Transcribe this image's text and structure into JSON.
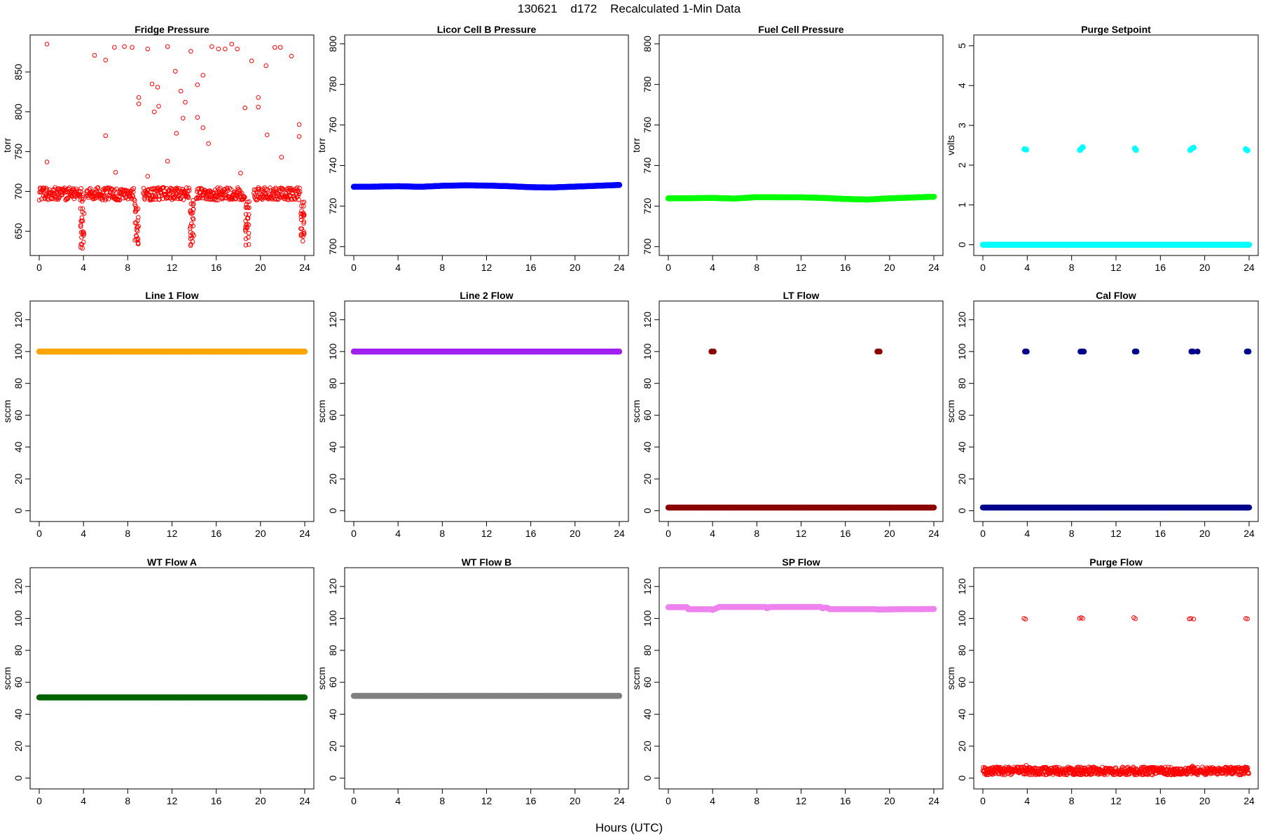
{
  "figure": {
    "title": "130621    d172    Recalculated 1-Min Data",
    "xlabel": "Hours (UTC)"
  },
  "chart_data": [
    {
      "type": "scatter",
      "title": "Fridge Pressure",
      "ylabel": "torr",
      "xlabel": "",
      "xlim": [
        0,
        24
      ],
      "ylim": [
        623,
        893
      ],
      "xticks": [
        0,
        4,
        8,
        12,
        16,
        20,
        24
      ],
      "yticks": [
        650,
        700,
        750,
        800,
        850
      ],
      "marker": "open-circle",
      "color": "#ff0000",
      "series": [
        {
          "baseline": {
            "segments": [
              [
                0.0,
                3.8
              ],
              [
                4.3,
                8.6
              ],
              [
                9.4,
                13.6
              ],
              [
                14.2,
                18.6
              ],
              [
                19.4,
                23.6
              ]
            ],
            "value": 697,
            "spread": 8
          },
          "dips": [
            {
              "x": 3.9,
              "from": 695,
              "to": 628
            },
            {
              "x": 8.8,
              "from": 690,
              "to": 633
            },
            {
              "x": 13.8,
              "from": 690,
              "to": 630
            },
            {
              "x": 18.8,
              "from": 690,
              "to": 632
            },
            {
              "x": 23.8,
              "from": 690,
              "to": 635
            }
          ],
          "points": [
            [
              0.7,
              885
            ],
            [
              0.7,
              737
            ],
            [
              2.0,
              703
            ],
            [
              4.0,
              697
            ],
            [
              5.0,
              871
            ],
            [
              6.0,
              865
            ],
            [
              6.0,
              770
            ],
            [
              6.8,
              881
            ],
            [
              6.9,
              724
            ],
            [
              7.7,
              882
            ],
            [
              8.4,
              881
            ],
            [
              9.0,
              818
            ],
            [
              9.0,
              810
            ],
            [
              9.8,
              879
            ],
            [
              9.8,
              719
            ],
            [
              10.2,
              835
            ],
            [
              10.4,
              800
            ],
            [
              10.7,
              831
            ],
            [
              10.8,
              807
            ],
            [
              11.6,
              882
            ],
            [
              11.6,
              738
            ],
            [
              12.3,
              851
            ],
            [
              12.4,
              773
            ],
            [
              12.8,
              826
            ],
            [
              13.0,
              792
            ],
            [
              13.2,
              812
            ],
            [
              13.7,
              876
            ],
            [
              14.3,
              834
            ],
            [
              14.3,
              793
            ],
            [
              14.8,
              846
            ],
            [
              14.8,
              780
            ],
            [
              15.3,
              760
            ],
            [
              15.6,
              882
            ],
            [
              16.2,
              879
            ],
            [
              16.8,
              879
            ],
            [
              17.4,
              885
            ],
            [
              17.9,
              879
            ],
            [
              18.2,
              723
            ],
            [
              18.6,
              805
            ],
            [
              19.2,
              864
            ],
            [
              19.8,
              818
            ],
            [
              19.8,
              806
            ],
            [
              20.5,
              858
            ],
            [
              20.6,
              771
            ],
            [
              21.3,
              881
            ],
            [
              21.8,
              881
            ],
            [
              21.9,
              743
            ],
            [
              22.8,
              870
            ],
            [
              23.5,
              784
            ],
            [
              23.5,
              769
            ]
          ]
        }
      ]
    },
    {
      "type": "scatter",
      "title": "Licor Cell B Pressure",
      "ylabel": "torr",
      "xlabel": "",
      "xlim": [
        0,
        24
      ],
      "ylim": [
        697,
        803
      ],
      "xticks": [
        0,
        4,
        8,
        12,
        16,
        20,
        24
      ],
      "yticks": [
        700,
        720,
        740,
        760,
        780,
        800
      ],
      "marker": "filled-circle",
      "color": "#0000ff",
      "series": [
        {
          "line": [
            [
              0,
              729.5
            ],
            [
              2,
              729.6
            ],
            [
              4,
              729.8
            ],
            [
              6,
              729.5
            ],
            [
              8,
              730.0
            ],
            [
              10,
              730.2
            ],
            [
              12,
              730.1
            ],
            [
              14,
              729.8
            ],
            [
              16,
              729.3
            ],
            [
              18,
              729.2
            ],
            [
              20,
              729.6
            ],
            [
              22,
              730.0
            ],
            [
              24,
              730.4
            ]
          ]
        }
      ]
    },
    {
      "type": "scatter",
      "title": "Fuel Cell Pressure",
      "ylabel": "torr",
      "xlabel": "",
      "xlim": [
        0,
        24
      ],
      "ylim": [
        697,
        803
      ],
      "xticks": [
        0,
        4,
        8,
        12,
        16,
        20,
        24
      ],
      "yticks": [
        700,
        720,
        740,
        760,
        780,
        800
      ],
      "marker": "filled-circle",
      "color": "#00ff00",
      "series": [
        {
          "line": [
            [
              0,
              723.8
            ],
            [
              2,
              723.9
            ],
            [
              4,
              724.0
            ],
            [
              6,
              723.7
            ],
            [
              8,
              724.4
            ],
            [
              10,
              724.3
            ],
            [
              12,
              724.3
            ],
            [
              14,
              724.0
            ],
            [
              16,
              723.5
            ],
            [
              18,
              723.2
            ],
            [
              20,
              723.8
            ],
            [
              22,
              724.2
            ],
            [
              24,
              724.6
            ]
          ]
        }
      ]
    },
    {
      "type": "scatter",
      "title": "Purge Setpoint",
      "ylabel": "volts",
      "xlabel": "",
      "xlim": [
        0,
        24
      ],
      "ylim": [
        -0.2,
        5.2
      ],
      "xticks": [
        0,
        4,
        8,
        12,
        16,
        20,
        24
      ],
      "yticks": [
        0,
        1,
        2,
        3,
        4,
        5
      ],
      "marker": "filled-circle",
      "color": "#00ffff",
      "series": [
        {
          "line": [
            [
              0,
              0
            ],
            [
              24,
              0
            ]
          ],
          "points": [
            [
              3.75,
              2.4
            ],
            [
              3.9,
              2.39
            ],
            [
              8.75,
              2.38
            ],
            [
              8.9,
              2.42
            ],
            [
              9.0,
              2.45
            ],
            [
              13.7,
              2.42
            ],
            [
              13.8,
              2.38
            ],
            [
              18.7,
              2.38
            ],
            [
              18.85,
              2.42
            ],
            [
              19.0,
              2.44
            ],
            [
              23.7,
              2.4
            ],
            [
              23.85,
              2.37
            ]
          ]
        }
      ]
    },
    {
      "type": "scatter",
      "title": "Line 1 Flow",
      "ylabel": "sccm",
      "xlabel": "",
      "xlim": [
        0,
        24
      ],
      "ylim": [
        -5,
        130
      ],
      "xticks": [
        0,
        4,
        8,
        12,
        16,
        20,
        24
      ],
      "yticks": [
        0,
        20,
        40,
        60,
        80,
        100,
        120
      ],
      "marker": "filled-circle",
      "color": "#ffa500",
      "series": [
        {
          "line": [
            [
              0,
              100
            ],
            [
              24,
              100
            ]
          ]
        }
      ]
    },
    {
      "type": "scatter",
      "title": "Line 2 Flow",
      "ylabel": "sccm",
      "xlabel": "",
      "xlim": [
        0,
        24
      ],
      "ylim": [
        -5,
        130
      ],
      "xticks": [
        0,
        4,
        8,
        12,
        16,
        20,
        24
      ],
      "yticks": [
        0,
        20,
        40,
        60,
        80,
        100,
        120
      ],
      "marker": "filled-circle",
      "color": "#a020f0",
      "series": [
        {
          "line": [
            [
              0,
              100
            ],
            [
              24,
              100
            ]
          ]
        }
      ]
    },
    {
      "type": "scatter",
      "title": "LT Flow",
      "ylabel": "sccm",
      "xlabel": "",
      "xlim": [
        0,
        24
      ],
      "ylim": [
        -5,
        130
      ],
      "xticks": [
        0,
        4,
        8,
        12,
        16,
        20,
        24
      ],
      "yticks": [
        0,
        20,
        40,
        60,
        80,
        100,
        120
      ],
      "marker": "filled-circle",
      "color": "#8b0000",
      "series": [
        {
          "line": [
            [
              0,
              2
            ],
            [
              24,
              2
            ]
          ],
          "points": [
            [
              3.9,
              100
            ],
            [
              4.1,
              100
            ],
            [
              18.9,
              100
            ],
            [
              19.1,
              100
            ]
          ]
        }
      ]
    },
    {
      "type": "scatter",
      "title": "Cal Flow",
      "ylabel": "sccm",
      "xlabel": "",
      "xlim": [
        0,
        24
      ],
      "ylim": [
        -5,
        130
      ],
      "xticks": [
        0,
        4,
        8,
        12,
        16,
        20,
        24
      ],
      "yticks": [
        0,
        20,
        40,
        60,
        80,
        100,
        120
      ],
      "marker": "filled-circle",
      "color": "#00008b",
      "series": [
        {
          "line": [
            [
              0,
              2
            ],
            [
              24,
              2
            ]
          ],
          "points": [
            [
              3.8,
              100
            ],
            [
              3.95,
              100
            ],
            [
              8.8,
              100
            ],
            [
              8.95,
              100
            ],
            [
              9.1,
              100
            ],
            [
              13.7,
              100
            ],
            [
              13.85,
              100
            ],
            [
              18.8,
              100
            ],
            [
              18.95,
              100
            ],
            [
              19.35,
              100
            ],
            [
              23.8,
              100
            ],
            [
              23.95,
              100
            ]
          ]
        }
      ]
    },
    {
      "type": "scatter",
      "title": "WT Flow A",
      "ylabel": "sccm",
      "xlabel": "",
      "xlim": [
        0,
        24
      ],
      "ylim": [
        -5,
        130
      ],
      "xticks": [
        0,
        4,
        8,
        12,
        16,
        20,
        24
      ],
      "yticks": [
        0,
        20,
        40,
        60,
        80,
        100,
        120
      ],
      "marker": "filled-circle",
      "color": "#006400",
      "series": [
        {
          "line": [
            [
              0,
              50.5
            ],
            [
              24,
              50.5
            ]
          ]
        }
      ]
    },
    {
      "type": "scatter",
      "title": "WT Flow B",
      "ylabel": "sccm",
      "xlabel": "",
      "xlim": [
        0,
        24
      ],
      "ylim": [
        -5,
        130
      ],
      "xticks": [
        0,
        4,
        8,
        12,
        16,
        20,
        24
      ],
      "yticks": [
        0,
        20,
        40,
        60,
        80,
        100,
        120
      ],
      "marker": "filled-circle",
      "color": "#808080",
      "series": [
        {
          "line": [
            [
              0,
              51.5
            ],
            [
              24,
              51.5
            ]
          ]
        }
      ]
    },
    {
      "type": "scatter",
      "title": "SP Flow",
      "ylabel": "sccm",
      "xlabel": "",
      "xlim": [
        0,
        24
      ],
      "ylim": [
        -5,
        130
      ],
      "xticks": [
        0,
        4,
        8,
        12,
        16,
        20,
        24
      ],
      "yticks": [
        0,
        20,
        40,
        60,
        80,
        100,
        120
      ],
      "marker": "filled-circle",
      "color": "#ee82ee",
      "series": [
        {
          "line": [
            [
              0,
              107
            ],
            [
              1.7,
              107
            ],
            [
              1.8,
              105.7
            ],
            [
              3.9,
              105.7
            ],
            [
              4.0,
              105.3
            ],
            [
              4.4,
              106.5
            ],
            [
              4.6,
              107.2
            ],
            [
              8.8,
              107.2
            ],
            [
              8.9,
              106.3
            ],
            [
              9.2,
              107.2
            ],
            [
              13.8,
              107.2
            ],
            [
              13.9,
              106.4
            ],
            [
              14.3,
              106.8
            ],
            [
              14.6,
              105.8
            ],
            [
              18.7,
              105.8
            ],
            [
              18.8,
              105.6
            ],
            [
              24,
              105.9
            ]
          ]
        }
      ]
    },
    {
      "type": "scatter",
      "title": "Purge Flow",
      "ylabel": "sccm",
      "xlabel": "",
      "xlim": [
        0,
        24
      ],
      "ylim": [
        -5,
        130
      ],
      "xticks": [
        0,
        4,
        8,
        12,
        16,
        20,
        24
      ],
      "yticks": [
        0,
        20,
        40,
        60,
        80,
        100,
        120
      ],
      "marker": "open-circle",
      "color": "#ff0000",
      "series": [
        {
          "band": {
            "from": 0,
            "to": 24,
            "value": 4.5,
            "spread": 2.5
          },
          "points": [
            [
              3.7,
              100
            ],
            [
              3.85,
              99.5
            ],
            [
              8.7,
              100
            ],
            [
              8.85,
              100.5
            ],
            [
              9.0,
              100
            ],
            [
              13.6,
              100.5
            ],
            [
              13.75,
              99.8
            ],
            [
              18.6,
              99.7
            ],
            [
              18.75,
              100
            ],
            [
              19.0,
              99.6
            ],
            [
              23.7,
              100
            ],
            [
              23.85,
              99.7
            ],
            [
              3.9,
              8
            ],
            [
              4.0,
              6
            ],
            [
              18.9,
              7.5
            ],
            [
              19.0,
              6
            ],
            [
              23.5,
              6
            ],
            [
              23.9,
              3
            ],
            [
              8.9,
              6
            ],
            [
              13.8,
              6
            ]
          ]
        }
      ]
    }
  ]
}
